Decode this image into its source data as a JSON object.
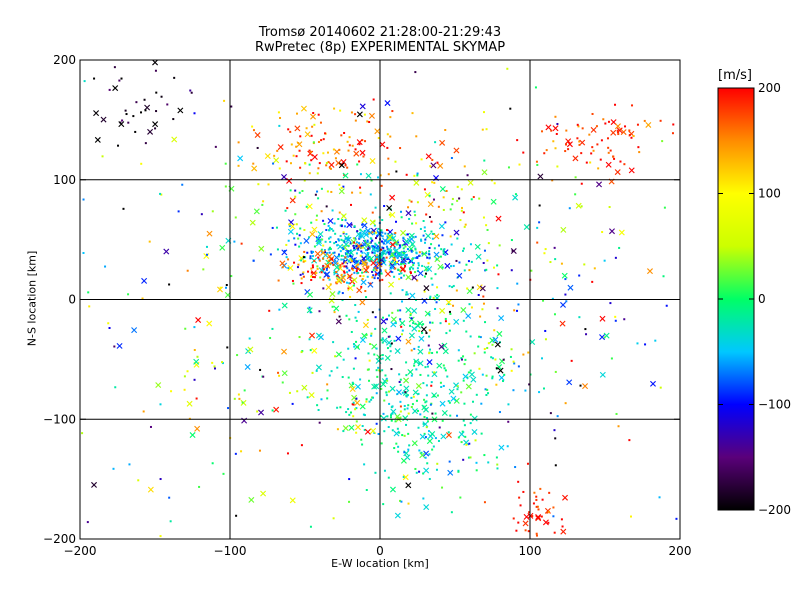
{
  "title_line1": "Tromsø 20140602 21:28:00-21:29:43",
  "title_line2": "RwPretec (8p) EXPERIMENTAL SKYMAP",
  "chart_data": {
    "type": "scatter",
    "title": "Tromsø 20140602 21:28:00-21:29:43 RwPretec (8p) EXPERIMENTAL SKYMAP",
    "xlabel": "E-W location [km]",
    "ylabel": "N-S location [km]",
    "xlim": [
      -200,
      200
    ],
    "ylim": [
      -200,
      200
    ],
    "xticks": [
      -200,
      -100,
      0,
      100,
      200
    ],
    "yticks": [
      -200,
      -100,
      0,
      100,
      200
    ],
    "xtick_labels": [
      "−200",
      "−100",
      "0",
      "100",
      "200"
    ],
    "ytick_labels": [
      "−200",
      "−100",
      "0",
      "100",
      "200"
    ],
    "grid": true,
    "colorbar": {
      "label": "[m/s]",
      "range": [
        -200,
        200
      ],
      "ticks": [
        200,
        100,
        0,
        -100,
        -200
      ],
      "tick_labels": [
        "200",
        "100",
        "0",
        "−100",
        "−200"
      ],
      "colors": [
        "#000000",
        "#5a007a",
        "#0000ff",
        "#00c8ff",
        "#00ff66",
        "#ccff00",
        "#ffff00",
        "#ff8c00",
        "#ff0000"
      ]
    },
    "markers": [
      "x",
      "dot"
    ],
    "clusters": [
      {
        "x": -5,
        "y": 40,
        "sx": 25,
        "sy": 12,
        "n": 520,
        "v": -50,
        "sv": 35
      },
      {
        "x": -25,
        "y": 25,
        "sx": 18,
        "sy": 8,
        "n": 120,
        "v": 170,
        "sv": 35
      },
      {
        "x": 25,
        "y": -70,
        "sx": 30,
        "sy": 45,
        "n": 420,
        "v": -20,
        "sv": 25
      },
      {
        "x": -30,
        "y": 130,
        "sx": 30,
        "sy": 15,
        "n": 110,
        "v": 160,
        "sv": 40
      },
      {
        "x": 0,
        "y": 80,
        "sx": 60,
        "sy": 25,
        "n": 150,
        "v": 60,
        "sv": 90
      },
      {
        "x": 145,
        "y": 135,
        "sx": 25,
        "sy": 12,
        "n": 80,
        "v": 180,
        "sv": 25
      },
      {
        "x": -160,
        "y": 160,
        "sx": 20,
        "sy": 20,
        "n": 40,
        "v": -190,
        "sv": 25
      },
      {
        "x": 105,
        "y": -180,
        "sx": 8,
        "sy": 15,
        "n": 45,
        "v": 190,
        "sv": 15
      },
      {
        "x": 60,
        "y": 0,
        "sx": 60,
        "sy": 60,
        "n": 220,
        "v": -20,
        "sv": 110
      },
      {
        "x": -90,
        "y": -60,
        "sx": 60,
        "sy": 80,
        "n": 160,
        "v": 20,
        "sv": 110
      },
      {
        "x": 0,
        "y": 0,
        "sx": 120,
        "sy": 120,
        "n": 180,
        "v": 0,
        "sv": 130
      }
    ]
  }
}
